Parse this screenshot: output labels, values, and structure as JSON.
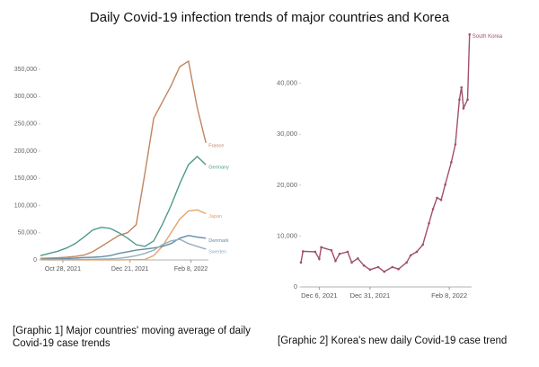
{
  "title": "Daily Covid-19 infection trends of major countries and Korea",
  "chart_data": [
    {
      "type": "line",
      "caption": "[Graphic 1] Major countries' moving average of daily Covid-19 case trends",
      "x": [
        "2021-10-10",
        "2021-10-17",
        "2021-10-24",
        "2021-10-31",
        "2021-11-07",
        "2021-11-14",
        "2021-11-21",
        "2021-11-28",
        "2021-12-05",
        "2021-12-12",
        "2021-12-19",
        "2021-12-26",
        "2022-01-02",
        "2022-01-09",
        "2022-01-16",
        "2022-01-23",
        "2022-01-30",
        "2022-02-06",
        "2022-02-13",
        "2022-02-20"
      ],
      "xlim": [
        "2021-10-10",
        "2022-02-22"
      ],
      "xticks": [
        {
          "value": "2021-10-28",
          "label": "Oct 28, 2021"
        },
        {
          "value": "2021-12-21",
          "label": "Dec 21, 2021"
        },
        {
          "value": "2022-02-08",
          "label": "Feb 8, 2022"
        }
      ],
      "ylim": [
        0,
        370000
      ],
      "yticks": [
        0,
        {
          "value": 50000,
          "label": "50,000"
        },
        {
          "value": 100000,
          "label": "100,000"
        },
        {
          "value": 150000,
          "label": "150,000"
        },
        {
          "value": 200000,
          "label": "200,000"
        },
        {
          "value": 250000,
          "label": "250,000"
        },
        {
          "value": 300000,
          "label": "300,000"
        },
        {
          "value": 350000,
          "label": "350,000"
        }
      ],
      "grid": false,
      "markers": false,
      "series": [
        {
          "name": "France",
          "color": "#c08560",
          "values": [
            3000,
            3500,
            4000,
            5000,
            6500,
            9000,
            15000,
            25000,
            35000,
            45000,
            50000,
            65000,
            160000,
            260000,
            290000,
            320000,
            355000,
            365000,
            280000,
            215000
          ]
        },
        {
          "name": "Germany",
          "color": "#4f9a8c",
          "values": [
            8000,
            12000,
            16000,
            22000,
            30000,
            42000,
            55000,
            60000,
            58000,
            50000,
            40000,
            28000,
            25000,
            35000,
            65000,
            100000,
            140000,
            175000,
            190000,
            175000
          ]
        },
        {
          "name": "Japan",
          "color": "#e3a46a",
          "values": [
            300,
            200,
            200,
            150,
            150,
            120,
            120,
            150,
            150,
            200,
            300,
            500,
            1000,
            8000,
            25000,
            50000,
            75000,
            90000,
            92000,
            85000
          ]
        },
        {
          "name": "Denmark",
          "color": "#5f8ea6",
          "values": [
            1000,
            1500,
            2000,
            2500,
            3500,
            4500,
            5000,
            6000,
            8000,
            12000,
            15000,
            18000,
            20000,
            22000,
            25000,
            30000,
            40000,
            45000,
            42000,
            40000
          ]
        },
        {
          "name": "Sweden",
          "color": "#98aebc",
          "values": [
            500,
            500,
            600,
            700,
            800,
            1000,
            1200,
            1500,
            2000,
            3000,
            5000,
            8000,
            12000,
            18000,
            28000,
            35000,
            38000,
            30000,
            25000,
            20000
          ]
        }
      ]
    },
    {
      "type": "line",
      "caption": "[Graphic 2] Korea's new daily Covid-19 case trend",
      "x": [
        "2021-11-27",
        "2021-11-28",
        "2021-12-04",
        "2021-12-06",
        "2021-12-07",
        "2021-12-12",
        "2021-12-14",
        "2021-12-16",
        "2021-12-20",
        "2021-12-22",
        "2021-12-25",
        "2021-12-28",
        "2021-12-31",
        "2022-01-04",
        "2022-01-07",
        "2022-01-11",
        "2022-01-14",
        "2022-01-18",
        "2022-01-20",
        "2022-01-23",
        "2022-01-26",
        "2022-01-29",
        "2022-01-31",
        "2022-02-02",
        "2022-02-04",
        "2022-02-06",
        "2022-02-09",
        "2022-02-11",
        "2022-02-13",
        "2022-02-14",
        "2022-02-15",
        "2022-02-17",
        "2022-02-18"
      ],
      "xlim": [
        "2021-11-27",
        "2022-02-19"
      ],
      "xticks": [
        {
          "value": "2021-12-06",
          "label": "Dec 6, 2021"
        },
        {
          "value": "2021-12-31",
          "label": "Dec 31, 2021"
        },
        {
          "value": "2022-02-08",
          "label": "Feb 8, 2022"
        }
      ],
      "ylim": [
        0,
        50000
      ],
      "yticks": [
        0,
        {
          "value": 10000,
          "label": "10,000"
        },
        {
          "value": 20000,
          "label": "20,000"
        },
        {
          "value": 30000,
          "label": "30,000"
        },
        {
          "value": 40000,
          "label": "40,000"
        }
      ],
      "grid": false,
      "markers": true,
      "series": [
        {
          "name": "South Korea",
          "color": "#a0506e",
          "values": [
            4800,
            7000,
            6900,
            5500,
            7800,
            7200,
            5100,
            6500,
            6900,
            4800,
            5600,
            4200,
            3400,
            3900,
            3000,
            3900,
            3500,
            4800,
            6200,
            6900,
            8300,
            12500,
            15300,
            17500,
            17100,
            20100,
            24500,
            28000,
            36800,
            39200,
            35100,
            36800,
            49600
          ]
        }
      ]
    }
  ]
}
